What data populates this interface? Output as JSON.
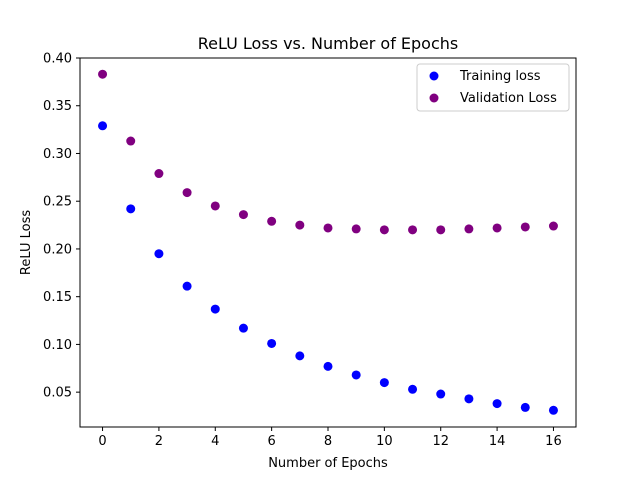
{
  "chart_data": {
    "type": "scatter",
    "title": "ReLU Loss vs. Number of Epochs",
    "xlabel": "Number of Epochs",
    "ylabel": "ReLU Loss",
    "xlim": [
      -0.8,
      16.8
    ],
    "ylim": [
      0.0135,
      0.4
    ],
    "xticks": [
      0,
      2,
      4,
      6,
      8,
      10,
      12,
      14,
      16
    ],
    "xtick_labels": [
      "0",
      "2",
      "4",
      "6",
      "8",
      "10",
      "12",
      "14",
      "16"
    ],
    "yticks": [
      0.05,
      0.1,
      0.15,
      0.2,
      0.25,
      0.3,
      0.35,
      0.4
    ],
    "ytick_labels": [
      "0.05",
      "0.10",
      "0.15",
      "0.20",
      "0.25",
      "0.30",
      "0.35",
      "0.40"
    ],
    "grid": false,
    "legend_position": "top-right",
    "x": [
      0,
      1,
      2,
      3,
      4,
      5,
      6,
      7,
      8,
      9,
      10,
      11,
      12,
      13,
      14,
      15,
      16
    ],
    "series": [
      {
        "name": "Training loss",
        "color": "#0000ff",
        "values": [
          0.329,
          0.242,
          0.195,
          0.161,
          0.137,
          0.117,
          0.101,
          0.088,
          0.077,
          0.068,
          0.06,
          0.053,
          0.048,
          0.043,
          0.038,
          0.034,
          0.031
        ]
      },
      {
        "name": "Validation Loss",
        "color": "#800080",
        "values": [
          0.383,
          0.313,
          0.279,
          0.259,
          0.245,
          0.236,
          0.229,
          0.225,
          0.222,
          0.221,
          0.22,
          0.22,
          0.22,
          0.221,
          0.222,
          0.223,
          0.224
        ]
      }
    ]
  }
}
